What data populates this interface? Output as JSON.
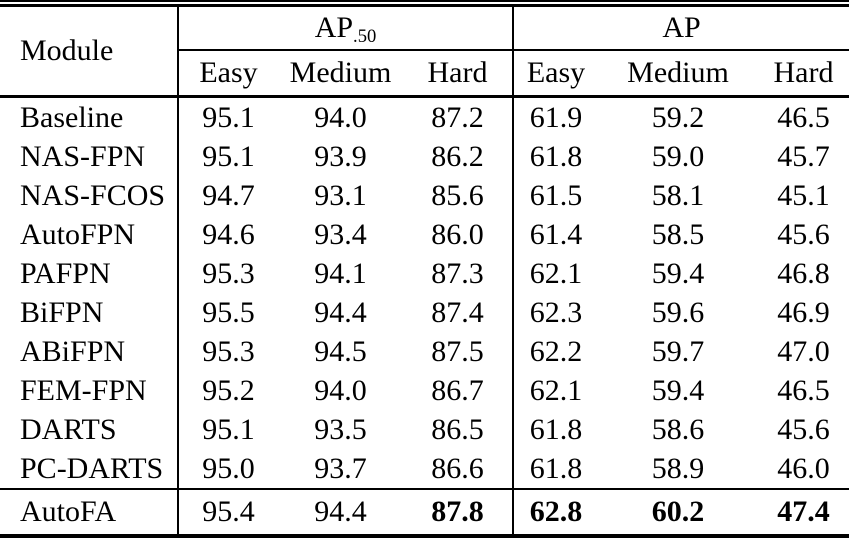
{
  "table": {
    "module_header": "Module",
    "group1": {
      "label": "AP",
      "subscript": ".50",
      "columns": [
        "Easy",
        "Medium",
        "Hard"
      ]
    },
    "group2": {
      "label": "AP",
      "columns": [
        "Easy",
        "Medium",
        "Hard"
      ]
    },
    "rows": [
      {
        "module": "Baseline",
        "values": [
          "95.1",
          "94.0",
          "87.2",
          "61.9",
          "59.2",
          "46.5"
        ]
      },
      {
        "module": "NAS-FPN",
        "values": [
          "95.1",
          "93.9",
          "86.2",
          "61.8",
          "59.0",
          "45.7"
        ]
      },
      {
        "module": "NAS-FCOS",
        "values": [
          "94.7",
          "93.1",
          "85.6",
          "61.5",
          "58.1",
          "45.1"
        ]
      },
      {
        "module": "AutoFPN",
        "values": [
          "94.6",
          "93.4",
          "86.0",
          "61.4",
          "58.5",
          "45.6"
        ]
      },
      {
        "module": "PAFPN",
        "values": [
          "95.3",
          "94.1",
          "87.3",
          "62.1",
          "59.4",
          "46.8"
        ]
      },
      {
        "module": "BiFPN",
        "values": [
          "95.5",
          "94.4",
          "87.4",
          "62.3",
          "59.6",
          "46.9"
        ]
      },
      {
        "module": "ABiFPN",
        "values": [
          "95.3",
          "94.5",
          "87.5",
          "62.2",
          "59.7",
          "47.0"
        ]
      },
      {
        "module": "FEM-FPN",
        "values": [
          "95.2",
          "94.0",
          "86.7",
          "62.1",
          "59.4",
          "46.5"
        ]
      },
      {
        "module": "DARTS",
        "values": [
          "95.1",
          "93.5",
          "86.5",
          "61.8",
          "58.6",
          "45.6"
        ]
      },
      {
        "module": "PC-DARTS",
        "values": [
          "95.0",
          "93.7",
          "86.6",
          "61.8",
          "58.9",
          "46.0"
        ]
      }
    ],
    "final_row": {
      "module": "AutoFA",
      "values": [
        "95.4",
        "94.4",
        "87.8",
        "62.8",
        "60.2",
        "47.4"
      ],
      "bold": [
        false,
        false,
        true,
        true,
        true,
        true
      ]
    },
    "text_color": "#000000",
    "background_color": "#ffffff"
  }
}
